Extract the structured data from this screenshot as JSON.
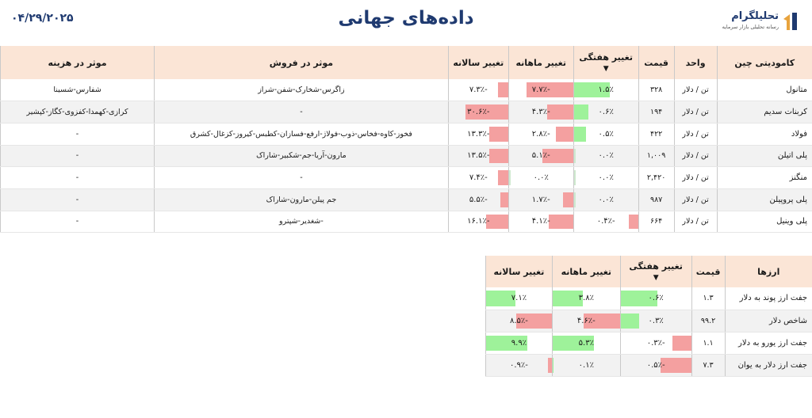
{
  "header": {
    "date": "۰۴/۲۹/۲۰۲۵",
    "title": "داده‌های جهانی",
    "logo_name": "تحلیلگرام",
    "logo_tagline": "رسانه تحلیلی بازار سرمایه"
  },
  "commodities": {
    "headers": [
      "کامودیتی چین",
      "واحد",
      "قیمت",
      "تغییر هفتگی",
      "تغییر ماهانه",
      "تغییر سالانه",
      "موثر در فروش",
      "موثر در هزینه"
    ],
    "sort_marker": "▼",
    "rows": [
      {
        "name": "متانول",
        "unit": "تن / دلار",
        "price": "۳۲۸",
        "weekly": "۱.۵٪",
        "weekly_v": 1.5,
        "monthly": "-۷.۷٪",
        "monthly_v": -7.7,
        "annual": "-۷.۳٪",
        "annual_v": -7.3,
        "sales": "زاگرس-شخارک-شفن-شراز",
        "cost": "شفارس-شسینا"
      },
      {
        "name": "کربنات سدیم",
        "unit": "تن / دلار",
        "price": "۱۹۴",
        "weekly": "۰.۶٪",
        "weekly_v": 0.6,
        "monthly": "-۴.۳٪",
        "monthly_v": -4.3,
        "annual": "-۳۰.۶٪",
        "annual_v": -30.6,
        "sales": "-",
        "cost": "کرازی-کهمدا-کفزوی-کگاز-کپشیر"
      },
      {
        "name": "فولاد",
        "unit": "تن / دلار",
        "price": "۴۲۲",
        "weekly": "۰.۵٪",
        "weekly_v": 0.5,
        "monthly": "-۲.۸٪",
        "monthly_v": -2.8,
        "annual": "-۱۳.۳٪",
        "annual_v": -13.3,
        "sales": "فخوز-کاوه-فخاس-ذوب-فولاژ-ارفع-فسازان-کطبس-کیروز-کزغال-کشرق",
        "cost": "-"
      },
      {
        "name": "پلی اتیلن",
        "unit": "تن / دلار",
        "price": "۱,۰۰۹",
        "weekly": "۰.۰٪",
        "weekly_v": 0.0,
        "monthly": "-۵.۱٪",
        "monthly_v": -5.1,
        "annual": "-۱۳.۵٪",
        "annual_v": -13.5,
        "sales": "مارون-آریا-جم-شکبیر-شاراک",
        "cost": "-"
      },
      {
        "name": "منگنز",
        "unit": "تن / دلار",
        "price": "۲,۴۲۰",
        "weekly": "۰.۰٪",
        "weekly_v": 0.0,
        "monthly": "۰.۰٪",
        "monthly_v": 0.0,
        "annual": "-۷.۴٪",
        "annual_v": -7.4,
        "sales": "-",
        "cost": "-"
      },
      {
        "name": "پلی پروپیلن",
        "unit": "تن / دلار",
        "price": "۹۸۷",
        "weekly": "۰.۰٪",
        "weekly_v": 0.0,
        "monthly": "-۱.۷٪",
        "monthly_v": -1.7,
        "annual": "-۵.۵٪",
        "annual_v": -5.5,
        "sales": "جم پیلن-مارون-شاراک",
        "cost": "-"
      },
      {
        "name": "پلی وینیل",
        "unit": "تن / دلار",
        "price": "۶۶۴",
        "weekly": "-۰.۴٪",
        "weekly_v": -0.4,
        "monthly": "-۴.۱٪",
        "monthly_v": -4.1,
        "annual": "-۱۶.۱٪",
        "annual_v": -16.1,
        "sales": "-شغدیر-شپترو",
        "cost": "-"
      }
    ]
  },
  "currencies": {
    "headers": [
      "ارزها",
      "قیمت",
      "تغییر هفتگی",
      "تغییر ماهانه",
      "تغییر سالانه"
    ],
    "sort_marker": "▼",
    "rows": [
      {
        "name": "جفت ارز پوند به دلار",
        "price": "۱.۳",
        "weekly": "۰.۶٪",
        "weekly_v": 0.6,
        "monthly": "۳.۸٪",
        "monthly_v": 3.8,
        "annual": "۷.۱٪",
        "annual_v": 7.1
      },
      {
        "name": "شاخص دلار",
        "price": "۹۹.۲",
        "weekly": "۰.۳٪",
        "weekly_v": 0.3,
        "monthly": "-۴.۶٪",
        "monthly_v": -4.6,
        "annual": "-۸.۵٪",
        "annual_v": -8.5
      },
      {
        "name": "جفت ارز یورو به دلار",
        "price": "۱.۱",
        "weekly": "-۰.۳٪",
        "weekly_v": -0.3,
        "monthly": "۵.۳٪",
        "monthly_v": 5.3,
        "annual": "۹.۹٪",
        "annual_v": 9.9
      },
      {
        "name": "جفت ارز دلار به یوان",
        "price": "۷.۳",
        "weekly": "-۰.۵٪",
        "weekly_v": -0.5,
        "monthly": "۰.۱٪",
        "monthly_v": 0.1,
        "annual": "-۰.۹٪",
        "annual_v": -0.9
      }
    ]
  },
  "colors": {
    "positive_bar": "#9ef29a",
    "negative_bar": "#f4a0a0",
    "header_bg": "#fbe5d6",
    "title": "#1f3a70"
  }
}
